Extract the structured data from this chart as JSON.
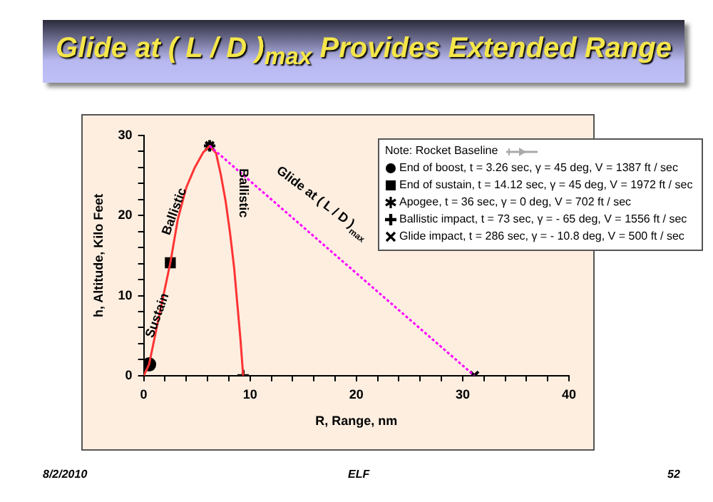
{
  "chart_data": {
    "type": "line",
    "title": "Glide at ( L / D )$_{max}$ Provides Extended Range",
    "xlabel": "R, Range, nm",
    "ylabel": "h, Altitude, Kilo Feet",
    "legend_title": "Note: Rocket Baseline",
    "legend": "top right",
    "grid": false,
    "xlim": [
      0,
      40
    ],
    "ylim": [
      0,
      30
    ],
    "xticks": [
      0,
      {
        "value": 2,
        "label": null
      },
      {
        "value": 4,
        "label": null
      },
      {
        "value": 6,
        "label": null
      },
      {
        "value": 8,
        "label": null
      },
      10,
      {
        "value": 12,
        "label": null
      },
      {
        "value": 14,
        "label": null
      },
      {
        "value": 16,
        "label": null
      },
      {
        "value": 18,
        "label": null
      },
      20,
      {
        "value": 22,
        "label": null
      },
      {
        "value": 24,
        "label": null
      },
      {
        "value": 26,
        "label": null
      },
      {
        "value": 28,
        "label": null
      },
      30,
      {
        "value": 32,
        "label": null
      },
      {
        "value": 34,
        "label": null
      },
      {
        "value": 36,
        "label": null
      },
      {
        "value": 38,
        "label": null
      },
      40
    ],
    "yticks": [
      0,
      {
        "value": 2,
        "label": null
      },
      {
        "value": 4,
        "label": null
      },
      {
        "value": 6,
        "label": null
      },
      {
        "value": 8,
        "label": null
      },
      10,
      {
        "value": 12,
        "label": null
      },
      {
        "value": 14,
        "label": null
      },
      {
        "value": 16,
        "label": null
      },
      {
        "value": 18,
        "label": null
      },
      20,
      {
        "value": 22,
        "label": null
      },
      {
        "value": 24,
        "label": null
      },
      {
        "value": 26,
        "label": null
      },
      {
        "value": 28,
        "label": null
      },
      30
    ],
    "series": [
      {
        "type": "line",
        "color": "#ff3333",
        "marker": "none",
        "line_style": "solid",
        "x": [
          0,
          0.5,
          1.5,
          2.5,
          3.2,
          4.0,
          4.8,
          5.6,
          6.2,
          6.8,
          7.25,
          7.7,
          8.1,
          8.5,
          8.8,
          9.1,
          9.35
        ],
        "values": [
          0,
          1.4,
          7.8,
          14.1,
          19.5,
          23.5,
          26.0,
          27.9,
          28.7,
          27.8,
          25.1,
          21.8,
          18.0,
          13.5,
          9.0,
          4.5,
          0
        ]
      },
      {
        "type": "line",
        "color": "#ff00ff",
        "marker": "none",
        "line_style": "dashed",
        "x": [
          6.2,
          31.1
        ],
        "values": [
          28.7,
          0
        ]
      },
      {
        "type": "scatter",
        "name": "End of boost, t = 3.26 sec, γ = 45 deg, V = 1387 ft / sec",
        "color": "#000000",
        "marker": "circle",
        "x": [
          0.5
        ],
        "values": [
          1.4
        ]
      },
      {
        "type": "scatter",
        "name": "End of sustain, t = 14.12 sec, γ = 45 deg, V = 1972 ft / sec",
        "color": "#000000",
        "marker": "square",
        "x": [
          2.5
        ],
        "values": [
          14.1
        ]
      },
      {
        "type": "scatter",
        "name": "Apogee, t = 36 sec, γ = 0 deg, V = 702 ft / sec",
        "color": "#000000",
        "marker": "cross",
        "x": [
          6.2
        ],
        "values": [
          28.7
        ]
      },
      {
        "type": "scatter",
        "name": "Ballistic impact, t = 73 sec, γ = - 65 deg, V = 1556 ft / sec",
        "color": "#000000",
        "marker": "plus",
        "x": [
          9.35
        ],
        "values": [
          0
        ]
      },
      {
        "type": "scatter",
        "name": "Glide impact, t = 286 sec, γ = - 10.8 deg, V = 500 ft / sec",
        "color": "#000000",
        "marker": "x",
        "x": [
          31.1
        ],
        "values": [
          0
        ]
      }
    ],
    "annotations": [
      {
        "text": "Sustain",
        "x": 1.3,
        "y": 7.5
      },
      {
        "text": "Ballistic",
        "x": 2.9,
        "y": 20.5
      },
      "Ballistic",
      "Glide at ( L / D )$_{max}$",
      "8/2/2010",
      "ELF",
      "52"
    ]
  }
}
